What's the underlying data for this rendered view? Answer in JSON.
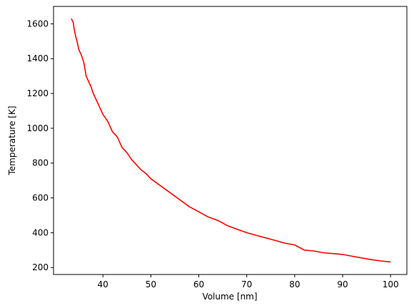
{
  "chart_data": {
    "type": "line",
    "title": "",
    "xlabel": "Volume [nm]",
    "ylabel": "Temperature [K]",
    "xlim": [
      29.7,
      103.4
    ],
    "ylim": [
      160,
      1700
    ],
    "xticks": [
      40,
      50,
      60,
      70,
      80,
      90,
      100
    ],
    "yticks": [
      200,
      400,
      600,
      800,
      1000,
      1200,
      1400,
      1600
    ],
    "grid": false,
    "legend": "none",
    "series": [
      {
        "color": "#ff0000",
        "x": [
          33.4,
          33.8,
          34.0,
          34.3,
          34.6,
          35.0,
          35.5,
          36.0,
          36.5,
          37.0,
          37.5,
          38.0,
          38.5,
          39.0,
          40.0,
          41.0,
          42.0,
          43.0,
          44.0,
          45.0,
          46.0,
          47.0,
          48.0,
          49.0,
          50.0,
          52.0,
          54.0,
          56.0,
          58.0,
          60.0,
          62.0,
          64.0,
          66.0,
          68.0,
          70.0,
          72.0,
          74.0,
          76.0,
          78.0,
          80.0,
          82.0,
          84.0,
          86.0,
          88.0,
          90.0,
          92.0,
          94.0,
          96.0,
          98.0,
          100.0
        ],
        "y": [
          1630,
          1610,
          1570,
          1530,
          1500,
          1450,
          1420,
          1380,
          1300,
          1270,
          1240,
          1200,
          1170,
          1140,
          1080,
          1040,
          980,
          950,
          890,
          860,
          820,
          790,
          760,
          740,
          710,
          670,
          630,
          590,
          550,
          520,
          490,
          470,
          440,
          420,
          400,
          385,
          370,
          355,
          340,
          330,
          300,
          295,
          285,
          280,
          275,
          265,
          255,
          245,
          238,
          232
        ]
      }
    ]
  }
}
